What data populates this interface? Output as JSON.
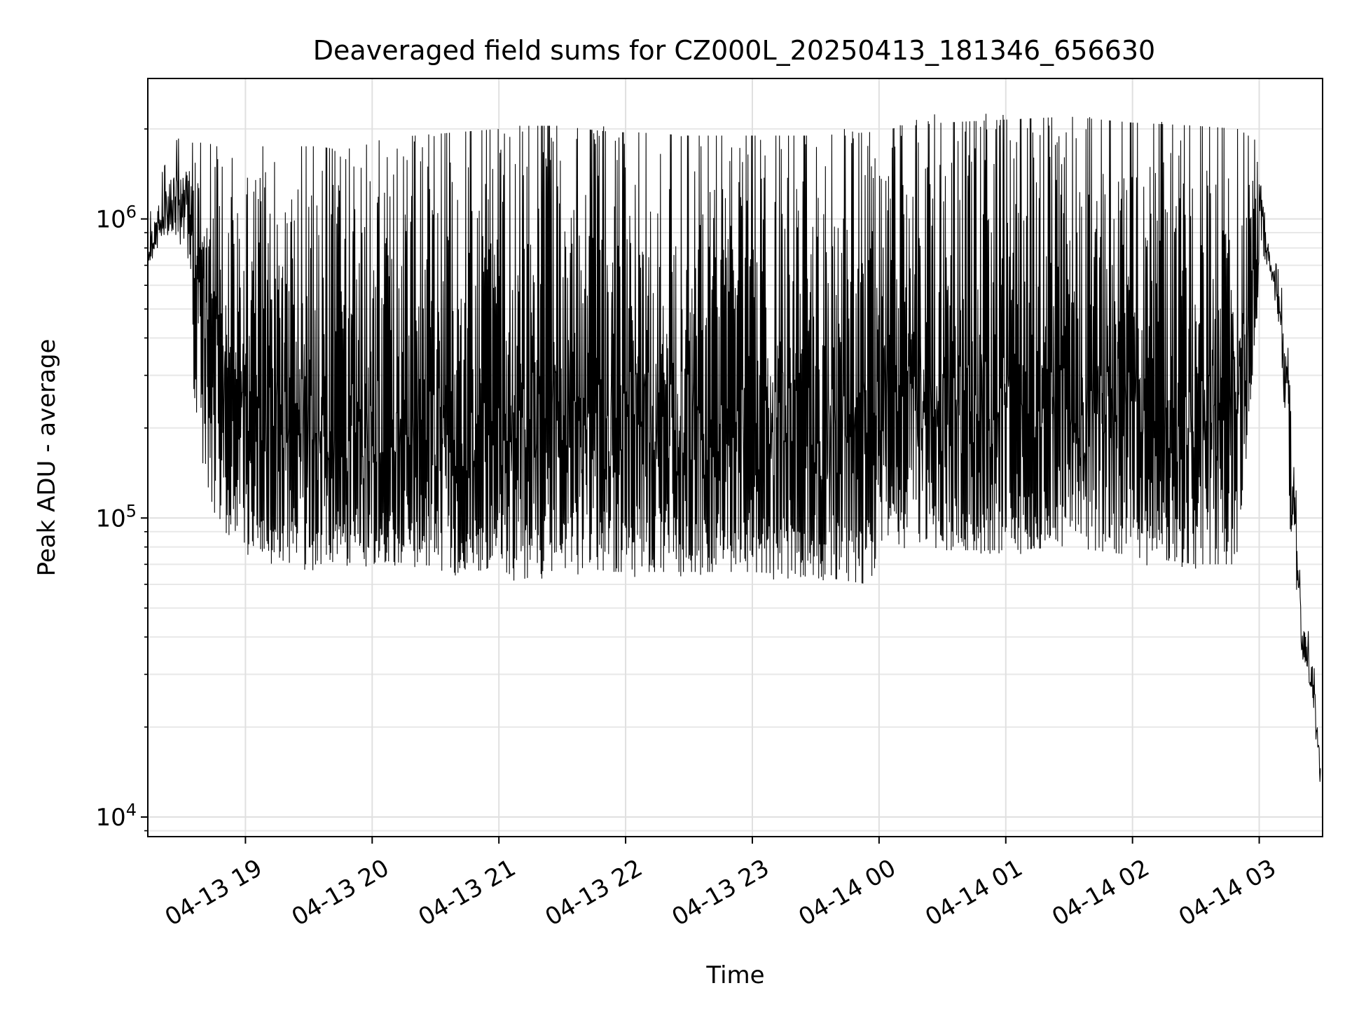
{
  "chart_data": {
    "type": "line",
    "title": "Deaveraged field sums for CZ000L_20250413_181346_656630",
    "xlabel": "Time",
    "ylabel": "Peak ADU - average",
    "yscale": "log",
    "ylim": [
      8600,
      2950000
    ],
    "xlim": [
      "2025-04-13 18:13:46",
      "2025-04-14 03:30:00"
    ],
    "xticks": [
      {
        "value": "2025-04-13 19:00",
        "label": "04-13 19"
      },
      {
        "value": "2025-04-13 20:00",
        "label": "04-13 20"
      },
      {
        "value": "2025-04-13 21:00",
        "label": "04-13 21"
      },
      {
        "value": "2025-04-13 22:00",
        "label": "04-13 22"
      },
      {
        "value": "2025-04-13 23:00",
        "label": "04-13 23"
      },
      {
        "value": "2025-04-14 00:00",
        "label": "04-14 00"
      },
      {
        "value": "2025-04-14 01:00",
        "label": "04-14 01"
      },
      {
        "value": "2025-04-14 02:00",
        "label": "04-14 02"
      },
      {
        "value": "2025-04-14 03:00",
        "label": "04-14 03"
      }
    ],
    "yticks": [
      {
        "value": 10000,
        "base": "10",
        "exp": "4"
      },
      {
        "value": 100000,
        "base": "10",
        "exp": "5"
      },
      {
        "value": 1000000,
        "base": "10",
        "exp": "6"
      }
    ],
    "grid": true,
    "line_color": "#000000",
    "series": [
      {
        "x": [
          "2025-04-13 18:14",
          "2025-04-13 18:20",
          "2025-04-13 18:26",
          "2025-04-13 18:30",
          "2025-04-13 18:34",
          "2025-04-13 18:38",
          "2025-04-13 18:42",
          "2025-04-13 18:46",
          "2025-04-13 18:50",
          "2025-04-13 18:55",
          "2025-04-13 19:05",
          "2025-04-13 19:15",
          "2025-04-13 19:25",
          "2025-04-13 19:35",
          "2025-04-13 19:45",
          "2025-04-13 19:55",
          "2025-04-13 20:05",
          "2025-04-13 20:20",
          "2025-04-13 20:40",
          "2025-04-13 21:00",
          "2025-04-13 21:10",
          "2025-04-13 21:20",
          "2025-04-13 21:30",
          "2025-04-13 21:40",
          "2025-04-13 21:55",
          "2025-04-13 22:05",
          "2025-04-13 22:30",
          "2025-04-13 23:00",
          "2025-04-13 23:30",
          "2025-04-13 23:55",
          "2025-04-14 00:05",
          "2025-04-14 00:15",
          "2025-04-14 00:30",
          "2025-04-14 01:00",
          "2025-04-14 01:30",
          "2025-04-14 02:00",
          "2025-04-14 02:30",
          "2025-04-14 02:50",
          "2025-04-14 03:00",
          "2025-04-14 03:05",
          "2025-04-14 03:10",
          "2025-04-14 03:15",
          "2025-04-14 03:20",
          "2025-04-14 03:25",
          "2025-04-14 03:29"
        ],
        "low": [
          700000,
          820000,
          900000,
          800000,
          650000,
          450000,
          300000,
          220000,
          140000,
          110000,
          100000,
          95000,
          100000,
          100000,
          100000,
          100000,
          100000,
          95000,
          95000,
          100000,
          110000,
          105000,
          95000,
          100000,
          100000,
          100000,
          98000,
          100000,
          97000,
          100000,
          150000,
          140000,
          115000,
          115000,
          120000,
          110000,
          110000,
          120000,
          650000,
          680000,
          400000,
          90000,
          35000,
          25000,
          12000
        ],
        "high": [
          900000,
          1200000,
          1400000,
          1500000,
          1500000,
          1500000,
          1500000,
          1500000,
          1500000,
          1500000,
          1500000,
          1500000,
          1500000,
          1500000,
          1500000,
          1500000,
          1500000,
          1600000,
          1700000,
          1700000,
          1750000,
          1750000,
          1750000,
          1750000,
          1800000,
          1800000,
          1750000,
          1750000,
          1750000,
          1800000,
          1900000,
          1950000,
          2000000,
          2000000,
          2050000,
          1950000,
          1850000,
          1850000,
          1500000,
          750000,
          600000,
          250000,
          45000,
          35000,
          15000
        ],
        "min": [
          650000,
          700000,
          800000,
          600000,
          350000,
          180000,
          130000,
          100000,
          90000,
          85000,
          80000,
          72000,
          70000,
          70000,
          72000,
          75000,
          72000,
          70000,
          68000,
          68000,
          62000,
          65000,
          68000,
          68000,
          66000,
          66000,
          66000,
          66000,
          64000,
          60000,
          90000,
          85000,
          78000,
          78000,
          80000,
          75000,
          70000,
          70000,
          600000,
          600000,
          350000,
          80000,
          30000,
          20000,
          11000
        ],
        "max": [
          1000000,
          1400000,
          1800000,
          1900000,
          1800000,
          1800000,
          1800000,
          1750000,
          1750000,
          1800000,
          1750000,
          1750000,
          1750000,
          1750000,
          1700000,
          1750000,
          1850000,
          1900000,
          1950000,
          2000000,
          2050000,
          2050000,
          2050000,
          2000000,
          1950000,
          1950000,
          1900000,
          1900000,
          1900000,
          1950000,
          2000000,
          2050000,
          2100000,
          2150000,
          2200000,
          2100000,
          2050000,
          2000000,
          1800000,
          800000,
          650000,
          300000,
          50000,
          38000,
          18000
        ]
      }
    ]
  }
}
